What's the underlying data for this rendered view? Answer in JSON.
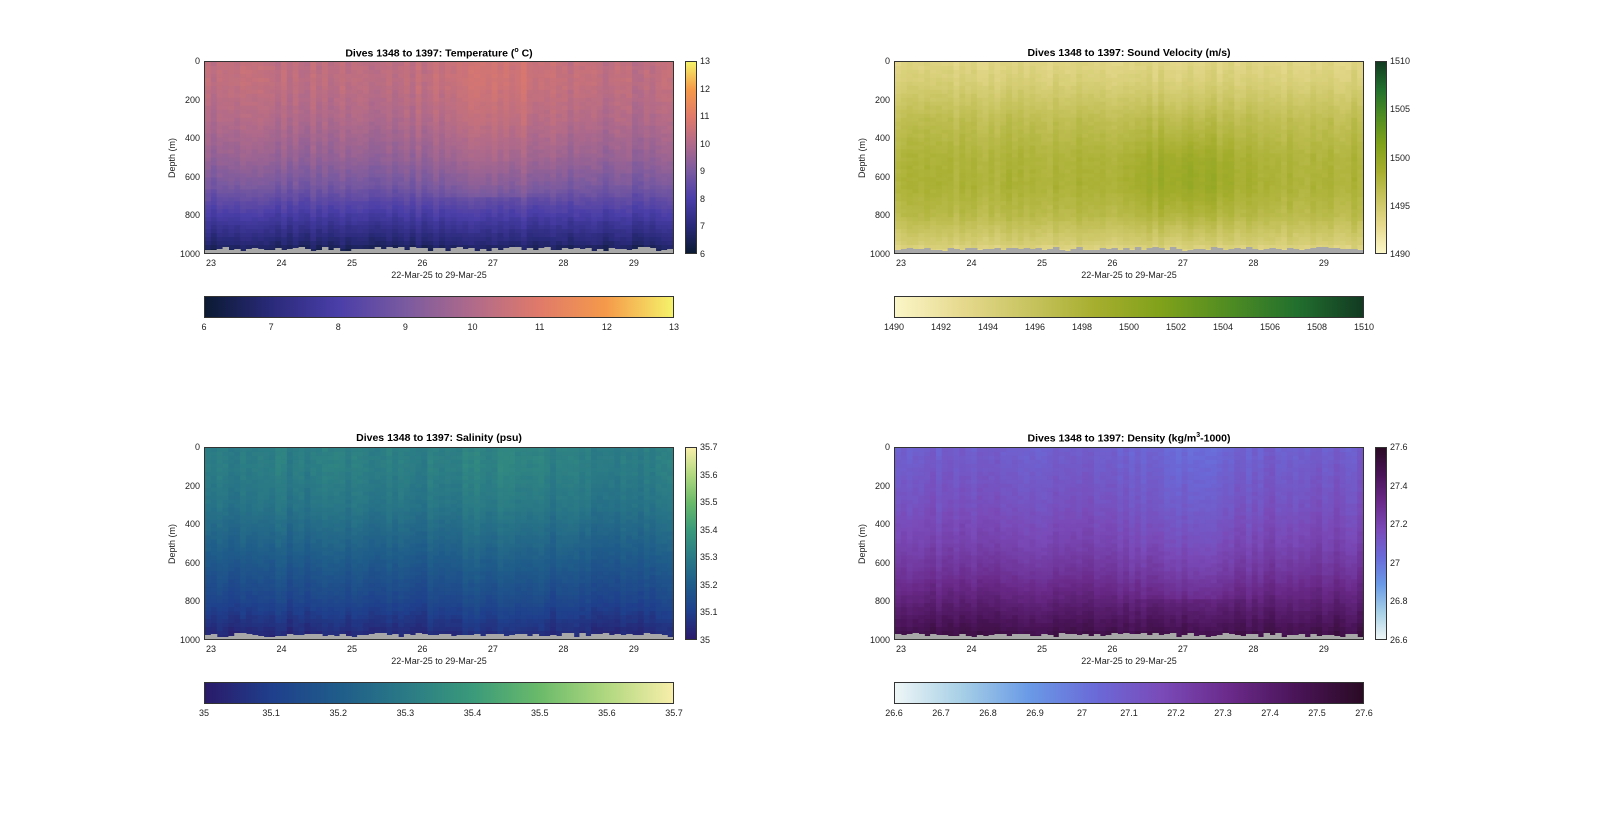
{
  "chart_data": [
    {
      "type": "heatmap",
      "title_main": "Dives 1348 to 1397: Temperature (",
      "title_sup": "o",
      "title_tail": " C)",
      "ylabel": "Depth (m)",
      "xlabel": "22-Mar-25 to 29-Mar-25",
      "y_ticks": [
        "0",
        "200",
        "400",
        "600",
        "800",
        "1000"
      ],
      "x_ticks": [
        "23",
        "24",
        "25",
        "26",
        "27",
        "28",
        "29"
      ],
      "x_range": [
        22.9,
        29.57
      ],
      "ylim": [
        0,
        1000
      ],
      "colorbar_v_ticks": [
        "13",
        "12",
        "11",
        "10",
        "9",
        "8",
        "7",
        "6"
      ],
      "colorbar_h_ticks": [
        "6",
        "7",
        "8",
        "9",
        "10",
        "11",
        "12",
        "13"
      ],
      "clim": [
        6,
        13
      ],
      "colormap": [
        "#0b1a33",
        "#2a2a7a",
        "#4a3ea8",
        "#7a5aa0",
        "#b06a8a",
        "#e07a6a",
        "#f59a4a",
        "#f5f26a"
      ],
      "profile_depth": [
        0,
        100,
        300,
        500,
        650,
        800,
        950,
        1000
      ],
      "profile_values": [
        10.3,
        10.3,
        10.0,
        9.5,
        8.9,
        7.9,
        6.8,
        6.3
      ]
    },
    {
      "type": "heatmap",
      "title_main": "Dives 1348 to 1397: Sound Velocity (m/s)",
      "ylabel": "Depth (m)",
      "xlabel": "22-Mar-25 to 29-Mar-25",
      "y_ticks": [
        "0",
        "200",
        "400",
        "600",
        "800",
        "1000"
      ],
      "x_ticks": [
        "23",
        "24",
        "25",
        "26",
        "27",
        "28",
        "29"
      ],
      "x_range": [
        22.9,
        29.57
      ],
      "ylim": [
        0,
        1000
      ],
      "colorbar_v_ticks": [
        "1510",
        "1505",
        "1500",
        "1495",
        "1490"
      ],
      "colorbar_h_ticks": [
        "1490",
        "1492",
        "1494",
        "1496",
        "1498",
        "1500",
        "1502",
        "1504",
        "1506",
        "1508",
        "1510"
      ],
      "clim": [
        1490,
        1510
      ],
      "colormap": [
        "#fbf6c8",
        "#e6d98e",
        "#c8c460",
        "#a6ae2e",
        "#7fa11a",
        "#4f8c22",
        "#22702e",
        "#123a22"
      ],
      "profile_depth": [
        0,
        100,
        300,
        500,
        650,
        800,
        950,
        1000
      ],
      "profile_values": [
        1493.5,
        1494.2,
        1496.5,
        1497.8,
        1498.0,
        1497.0,
        1494.5,
        1493.0
      ]
    },
    {
      "type": "heatmap",
      "title_main": "Dives 1348 to 1397: Salinity (psu)",
      "ylabel": "Depth (m)",
      "xlabel": "22-Mar-25 to 29-Mar-25",
      "y_ticks": [
        "0",
        "200",
        "400",
        "600",
        "800",
        "1000"
      ],
      "x_ticks": [
        "23",
        "24",
        "25",
        "26",
        "27",
        "28",
        "29"
      ],
      "x_range": [
        22.9,
        29.57
      ],
      "ylim": [
        0,
        1000
      ],
      "colorbar_v_ticks": [
        "35.7",
        "35.6",
        "35.5",
        "35.4",
        "35.3",
        "35.2",
        "35.1",
        "35"
      ],
      "colorbar_h_ticks": [
        "35",
        "35.1",
        "35.2",
        "35.3",
        "35.4",
        "35.5",
        "35.6",
        "35.7"
      ],
      "clim": [
        35,
        35.7
      ],
      "colormap": [
        "#2a1a6a",
        "#1f3f8c",
        "#1f5c8a",
        "#2a7a86",
        "#3a9a7a",
        "#6aba6a",
        "#b0d880",
        "#f7eeaa"
      ],
      "profile_depth": [
        0,
        100,
        300,
        500,
        650,
        800,
        950,
        1000
      ],
      "profile_values": [
        35.31,
        35.31,
        35.28,
        35.22,
        35.17,
        35.12,
        35.05,
        35.03
      ]
    },
    {
      "type": "heatmap",
      "title_main": "Dives 1348 to 1397: Density (kg/m",
      "title_sup": "3",
      "title_tail": "-1000)",
      "ylabel": "Depth (m)",
      "xlabel": "22-Mar-25 to 29-Mar-25",
      "y_ticks": [
        "0",
        "200",
        "400",
        "600",
        "800",
        "1000"
      ],
      "x_ticks": [
        "23",
        "24",
        "25",
        "26",
        "27",
        "28",
        "29"
      ],
      "x_range": [
        22.9,
        29.57
      ],
      "ylim": [
        0,
        1000
      ],
      "colorbar_v_ticks": [
        "27.6",
        "27.4",
        "27.2",
        "27",
        "26.8",
        "26.6"
      ],
      "colorbar_h_ticks": [
        "26.6",
        "26.7",
        "26.8",
        "26.9",
        "27",
        "27.1",
        "27.2",
        "27.3",
        "27.4",
        "27.5",
        "27.6"
      ],
      "clim": [
        26.6,
        27.6
      ],
      "colormap": [
        "#eef6f6",
        "#a6cfe6",
        "#6a9ae6",
        "#6a6ad8",
        "#7a4ab8",
        "#6a2a8a",
        "#4a1458",
        "#2a0a24"
      ],
      "profile_depth": [
        0,
        100,
        300,
        500,
        650,
        800,
        950,
        1000
      ],
      "profile_values": [
        27.08,
        27.1,
        27.14,
        27.2,
        27.27,
        27.37,
        27.48,
        27.52
      ]
    }
  ]
}
